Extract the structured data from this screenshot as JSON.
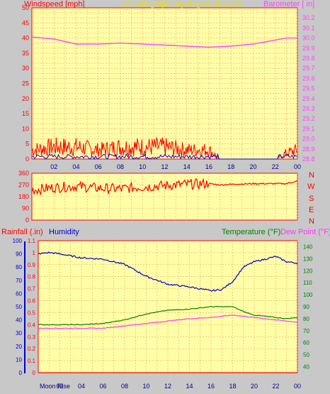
{
  "header": {
    "left_label": "Windspeed [mph]",
    "center_label": "24 hour graph day   August 28 2024",
    "right_label": "Barometer [ in]"
  },
  "direction_labels": [
    "N",
    "W",
    "S",
    "E",
    "N"
  ],
  "bottom": {
    "rain_label": "Rainfall (.in)",
    "humidity_label": "Humidity",
    "temp_label": "Temperature (°F)",
    "dew_label": "Dew Point (°F)",
    "moonrise_label": "Moon Rise"
  },
  "colors": {
    "background": "#c8c8c8",
    "plot_bg": "#ffffa8",
    "grid": "#f0a070",
    "wind": "#ff0000",
    "gust_avg": "#0000ff",
    "barometer": "#ff44ff",
    "humidity": "#0000cc",
    "temperature": "#008000",
    "dewpoint": "#ff33ff",
    "rain_axis": "#0000cc"
  },
  "chart_data": [
    {
      "type": "line",
      "title": "24 hour graph day   August 28 2024",
      "x_ticks": [
        "02",
        "04",
        "06",
        "08",
        "10",
        "12",
        "14",
        "16",
        "18",
        "20",
        "22",
        "00"
      ],
      "ylim_left": [
        0,
        50
      ],
      "y_ticks_left": [
        0,
        5,
        10,
        15,
        20,
        25,
        30,
        35,
        40,
        45,
        50
      ],
      "ylim_right": [
        28.8,
        30.3
      ],
      "y_ticks_right": [
        28.8,
        28.9,
        29.0,
        29.1,
        29.2,
        29.3,
        29.4,
        29.5,
        29.6,
        29.7,
        29.8,
        29.9,
        30.0,
        30.1,
        30.2
      ],
      "series": [
        {
          "name": "Windspeed [mph]",
          "axis": "left",
          "x": [
            0,
            2,
            4,
            6,
            8,
            10,
            12,
            14,
            16,
            17,
            18,
            20,
            22,
            23,
            24
          ],
          "y": [
            3,
            4,
            4,
            3,
            4,
            4,
            4,
            3,
            3,
            0,
            0,
            0,
            0,
            2,
            3
          ]
        },
        {
          "name": "Barometer [ in]",
          "axis": "right",
          "x": [
            0,
            2,
            4,
            6,
            8,
            10,
            12,
            14,
            16,
            18,
            20,
            22,
            23,
            24
          ],
          "y": [
            30.01,
            29.99,
            29.94,
            29.94,
            29.95,
            29.94,
            29.93,
            29.92,
            29.91,
            29.92,
            29.94,
            29.98,
            30.0,
            30.0
          ]
        }
      ]
    },
    {
      "type": "line",
      "x_ticks": [
        "02",
        "04",
        "06",
        "08",
        "10",
        "12",
        "14",
        "16",
        "18",
        "20",
        "22",
        "00"
      ],
      "ylim": [
        0,
        360
      ],
      "y_ticks": [
        0,
        90,
        180,
        270,
        360
      ],
      "series": [
        {
          "name": "Wind Direction",
          "x": [
            0,
            2,
            4,
            6,
            8,
            10,
            12,
            14,
            16,
            17,
            18,
            20,
            22,
            23,
            24
          ],
          "y": [
            230,
            250,
            260,
            245,
            240,
            255,
            265,
            275,
            280,
            270,
            275,
            280,
            280,
            280,
            300
          ]
        }
      ]
    },
    {
      "type": "line",
      "x_ticks": [
        "02",
        "04",
        "06",
        "08",
        "10",
        "12",
        "14",
        "16",
        "18",
        "20",
        "22",
        "00"
      ],
      "ylim_humidity": [
        0,
        100
      ],
      "y_ticks_humidity": [
        0,
        10,
        20,
        30,
        40,
        50,
        60,
        70,
        80,
        90,
        100
      ],
      "ylim_rain": [
        0,
        1.1
      ],
      "y_ticks_rain": [
        0,
        0.1,
        0.2,
        0.3,
        0.4,
        0.5,
        0.6,
        0.7,
        0.8,
        0.9,
        1,
        1.1
      ],
      "ylim_temp": [
        35,
        145
      ],
      "y_ticks_temp": [
        40,
        50,
        60,
        70,
        80,
        90,
        100,
        110,
        120,
        130,
        140
      ],
      "series": [
        {
          "name": "Humidity",
          "axis": "humidity",
          "x": [
            0,
            1,
            2,
            4,
            6,
            8,
            10,
            12,
            14,
            16,
            17,
            18,
            19,
            20,
            22,
            23,
            24
          ],
          "y": [
            90,
            91,
            90,
            87,
            86,
            82,
            73,
            67,
            65,
            62,
            63,
            69,
            80,
            84,
            88,
            84,
            83
          ]
        },
        {
          "name": "Rainfall (.in)",
          "axis": "rain",
          "x": [
            0,
            24
          ],
          "y": [
            0,
            0
          ]
        },
        {
          "name": "Temperature (°F)",
          "axis": "temp",
          "x": [
            0,
            2,
            4,
            6,
            8,
            10,
            12,
            14,
            16,
            18,
            19,
            20,
            22,
            23,
            24
          ],
          "y": [
            75,
            75,
            75,
            76,
            79,
            84,
            87,
            88,
            90,
            90,
            86,
            83,
            81,
            80,
            81
          ]
        },
        {
          "name": "Dew Point (°F)",
          "axis": "temp",
          "x": [
            0,
            2,
            4,
            6,
            8,
            10,
            12,
            14,
            16,
            18,
            20,
            22,
            23,
            24
          ],
          "y": [
            72,
            72,
            72,
            72,
            74,
            76,
            78,
            80,
            81,
            83,
            81,
            79,
            78,
            77
          ]
        }
      ]
    }
  ]
}
